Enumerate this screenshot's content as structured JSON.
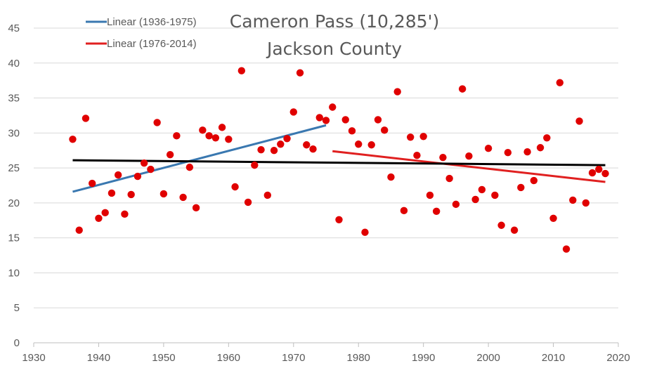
{
  "chart_data": {
    "type": "scatter",
    "title": "Cameron Pass (10,285')",
    "subtitle": "Jackson County",
    "xlabel": "",
    "ylabel": "",
    "xlim": [
      1930,
      2020
    ],
    "ylim": [
      0,
      45
    ],
    "x_ticks": [
      1930,
      1940,
      1950,
      1960,
      1970,
      1980,
      1990,
      2000,
      2010,
      2020
    ],
    "y_ticks": [
      0,
      5,
      10,
      15,
      20,
      25,
      30,
      35,
      40,
      45
    ],
    "grid": "horizontal",
    "legend_position": "top-left",
    "colors": {
      "points": "#e00000",
      "trend_early": "#3a78b0",
      "trend_late": "#e02020",
      "trend_all": "#000000",
      "grid": "#d9d9d9",
      "text": "#595959"
    },
    "series": [
      {
        "values": [
          [
            1936,
            29.1
          ],
          [
            1937,
            16.1
          ],
          [
            1938,
            32.1
          ],
          [
            1939,
            22.8
          ],
          [
            1940,
            17.8
          ],
          [
            1941,
            18.6
          ],
          [
            1942,
            21.4
          ],
          [
            1943,
            24.0
          ],
          [
            1944,
            18.4
          ],
          [
            1945,
            21.2
          ],
          [
            1946,
            23.8
          ],
          [
            1947,
            25.7
          ],
          [
            1948,
            24.8
          ],
          [
            1949,
            31.5
          ],
          [
            1950,
            21.3
          ],
          [
            1951,
            26.9
          ],
          [
            1952,
            29.6
          ],
          [
            1953,
            20.8
          ],
          [
            1954,
            25.1
          ],
          [
            1955,
            19.3
          ],
          [
            1956,
            30.4
          ],
          [
            1957,
            29.6
          ],
          [
            1958,
            29.3
          ],
          [
            1959,
            30.8
          ],
          [
            1960,
            29.1
          ],
          [
            1961,
            22.3
          ],
          [
            1962,
            38.9
          ],
          [
            1963,
            20.1
          ],
          [
            1964,
            25.4
          ],
          [
            1965,
            27.6
          ],
          [
            1966,
            21.1
          ],
          [
            1967,
            27.5
          ],
          [
            1968,
            28.4
          ],
          [
            1969,
            29.2
          ],
          [
            1970,
            33.0
          ],
          [
            1971,
            38.6
          ],
          [
            1972,
            28.3
          ],
          [
            1973,
            27.7
          ],
          [
            1974,
            32.2
          ],
          [
            1975,
            31.8
          ],
          [
            1976,
            33.7
          ],
          [
            1977,
            17.6
          ],
          [
            1978,
            31.9
          ],
          [
            1979,
            30.3
          ],
          [
            1980,
            28.4
          ],
          [
            1981,
            15.8
          ],
          [
            1982,
            28.3
          ],
          [
            1983,
            31.9
          ],
          [
            1984,
            30.4
          ],
          [
            1985,
            23.7
          ],
          [
            1986,
            35.9
          ],
          [
            1987,
            18.9
          ],
          [
            1988,
            29.4
          ],
          [
            1989,
            26.8
          ],
          [
            1990,
            29.5
          ],
          [
            1991,
            21.1
          ],
          [
            1992,
            18.8
          ],
          [
            1993,
            26.5
          ],
          [
            1994,
            23.5
          ],
          [
            1995,
            19.8
          ],
          [
            1996,
            36.3
          ],
          [
            1997,
            26.7
          ],
          [
            1998,
            20.5
          ],
          [
            1999,
            21.9
          ],
          [
            2000,
            27.8
          ],
          [
            2001,
            21.1
          ],
          [
            2002,
            16.8
          ],
          [
            2003,
            27.2
          ],
          [
            2004,
            16.1
          ],
          [
            2005,
            22.2
          ],
          [
            2006,
            27.3
          ],
          [
            2007,
            23.2
          ],
          [
            2008,
            27.9
          ],
          [
            2009,
            29.3
          ],
          [
            2010,
            17.8
          ],
          [
            2011,
            37.2
          ],
          [
            2012,
            13.4
          ],
          [
            2013,
            20.4
          ],
          [
            2014,
            31.7
          ],
          [
            2015,
            20.0
          ],
          [
            2016,
            24.3
          ],
          [
            2017,
            24.8
          ],
          [
            2018,
            24.2
          ]
        ]
      }
    ],
    "trendlines": [
      {
        "name": "Linear (1936-1975)",
        "x": [
          1936,
          1975
        ],
        "y": [
          21.6,
          31.1
        ],
        "color": "#3a78b0",
        "in_legend": true
      },
      {
        "name": "Linear (1976-2014)",
        "x": [
          1976,
          2018
        ],
        "y": [
          27.4,
          23.0
        ],
        "color": "#e02020",
        "in_legend": true
      },
      {
        "x": [
          1936,
          2018
        ],
        "y": [
          26.1,
          25.4
        ],
        "color": "#000000",
        "in_legend": false
      }
    ]
  }
}
